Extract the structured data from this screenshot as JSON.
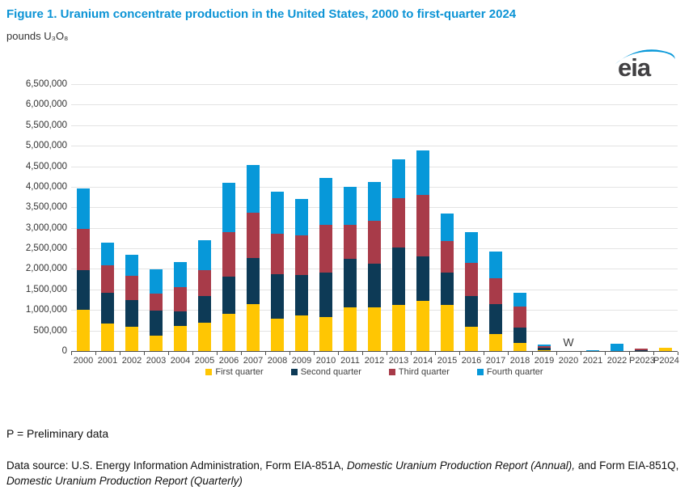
{
  "header": {
    "title": "Figure 1. Uranium concentrate production in the United States, 2000 to first-quarter 2024",
    "units_label": "pounds U₃O₈",
    "logo_text": "eia"
  },
  "chart_data": {
    "type": "bar",
    "stacked": true,
    "title": "Uranium concentrate production in the United States, 2000 to first-quarter 2024",
    "xlabel": "",
    "ylabel": "pounds U3O8",
    "ylim": [
      0,
      6500000
    ],
    "ytick_step": 500000,
    "grid": true,
    "legend_position": "bottom",
    "categories": [
      "2000",
      "2001",
      "2002",
      "2003",
      "2004",
      "2005",
      "2006",
      "2007",
      "2008",
      "2009",
      "2010",
      "2011",
      "2012",
      "2013",
      "2014",
      "2015",
      "2016",
      "2017",
      "2018",
      "2019",
      "2020",
      "2021",
      "2022",
      "P2023",
      "P2024"
    ],
    "series": [
      {
        "name": "First quarter",
        "color": "#ffc603",
        "values": [
          1000000,
          670000,
          590000,
          380000,
          610000,
          690000,
          900000,
          1150000,
          780000,
          860000,
          820000,
          1060000,
          1060000,
          1120000,
          1220000,
          1130000,
          590000,
          410000,
          200000,
          20000,
          0,
          0,
          0,
          0,
          70000
        ]
      },
      {
        "name": "Second quarter",
        "color": "#0d3a56",
        "values": [
          960000,
          740000,
          650000,
          600000,
          360000,
          640000,
          920000,
          1120000,
          1100000,
          1000000,
          1090000,
          1180000,
          1060000,
          1410000,
          1080000,
          780000,
          750000,
          740000,
          370000,
          50000,
          0,
          0,
          0,
          25000,
          0
        ]
      },
      {
        "name": "Third quarter",
        "color": "#a83b49",
        "values": [
          1020000,
          680000,
          600000,
          420000,
          590000,
          640000,
          1080000,
          1090000,
          970000,
          950000,
          1160000,
          840000,
          1050000,
          1190000,
          1500000,
          770000,
          810000,
          630000,
          520000,
          50000,
          0,
          0,
          0,
          25000,
          0
        ]
      },
      {
        "name": "Fourth quarter",
        "color": "#0798d9",
        "values": [
          970000,
          550000,
          500000,
          580000,
          610000,
          720000,
          1200000,
          1170000,
          1040000,
          890000,
          1150000,
          910000,
          950000,
          940000,
          1080000,
          660000,
          740000,
          650000,
          330000,
          30000,
          0,
          20000,
          180000,
          0,
          0
        ]
      }
    ],
    "annotations": [
      {
        "category": "2020",
        "text": "W",
        "meaning": "withheld"
      }
    ]
  },
  "footer": {
    "note": "P = Preliminary data",
    "source_prefix": "Data source: U.S. Energy Information Administration, Form EIA-851A, ",
    "source_italic1": "Domestic Uranium Production Report (Annual),",
    "source_middle": " and Form EIA-851Q, ",
    "source_italic2": "Domestic Uranium Production Report (Quarterly)"
  }
}
